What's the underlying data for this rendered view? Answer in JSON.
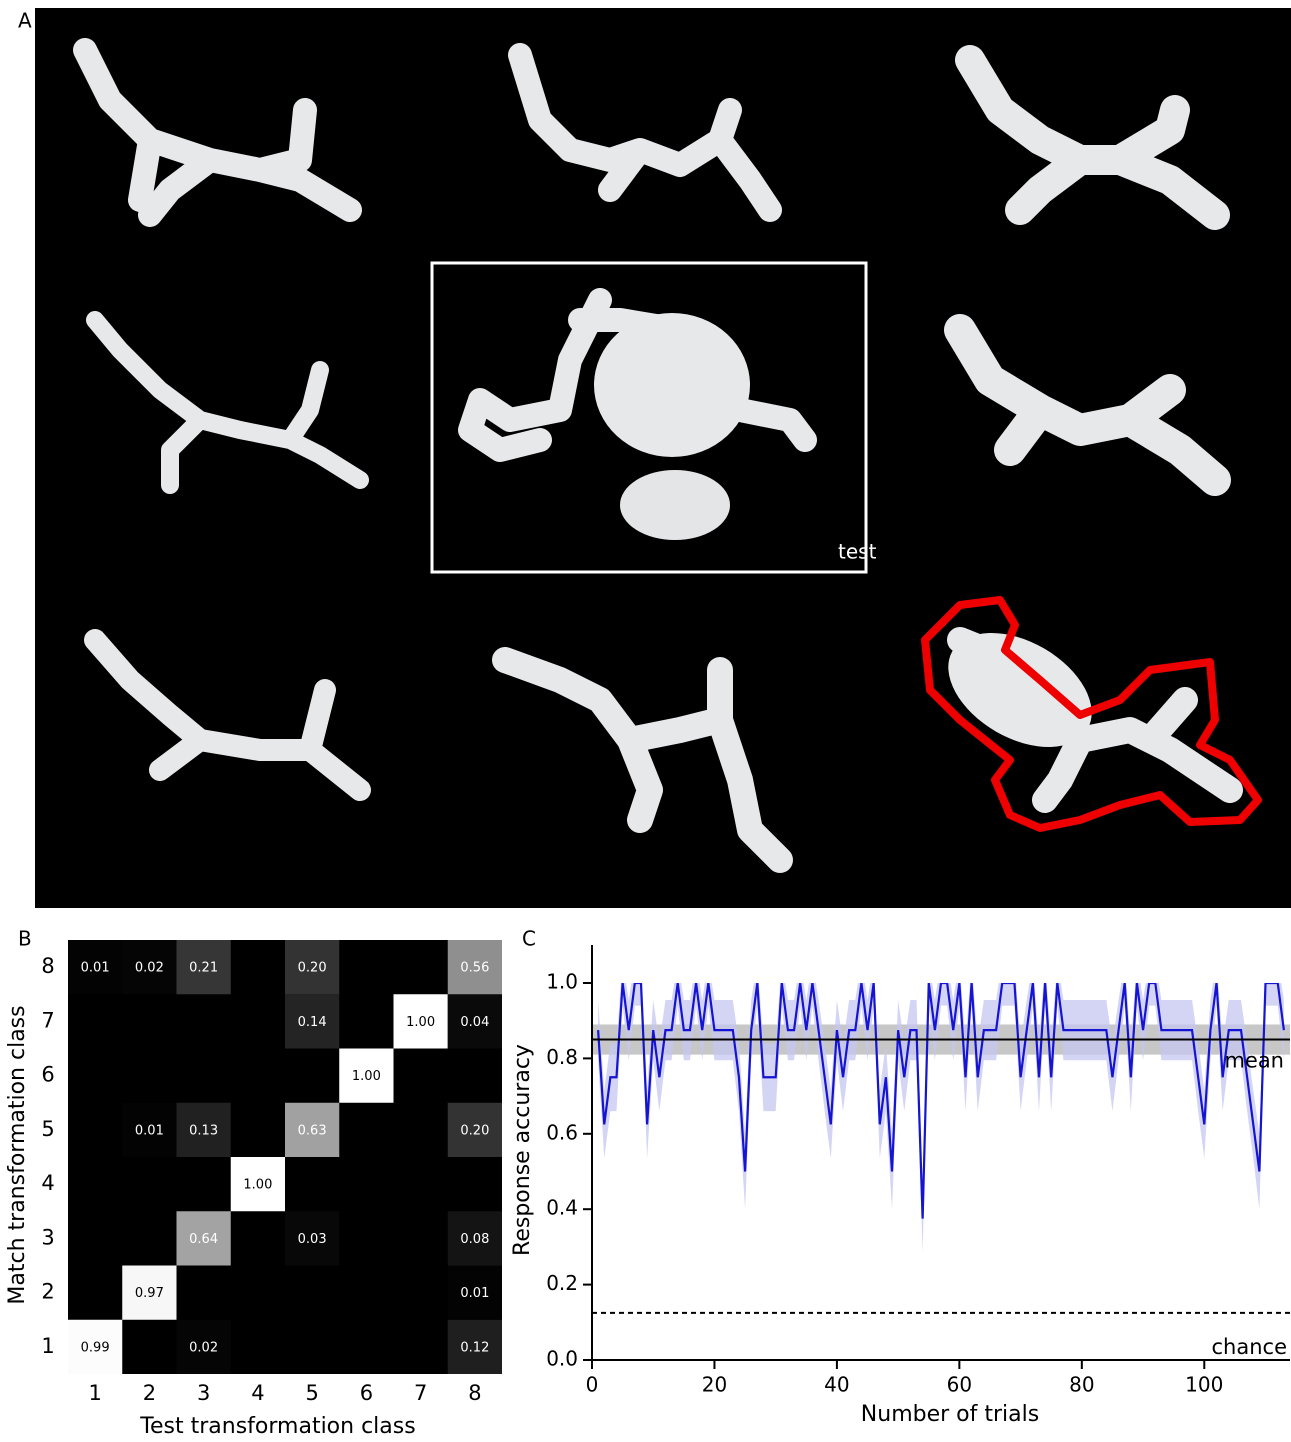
{
  "panel_a": {
    "label": "A",
    "test_label": "test"
  },
  "chart_data": [
    {
      "type": "heatmap",
      "panel_label": "B",
      "x_label": "Test transformation class",
      "y_label": "Match transformation class",
      "x_categories": [
        "1",
        "2",
        "3",
        "4",
        "5",
        "6",
        "7",
        "8"
      ],
      "y_categories": [
        "1",
        "2",
        "3",
        "4",
        "5",
        "6",
        "7",
        "8"
      ],
      "values": [
        [
          0.99,
          null,
          0.02,
          null,
          null,
          null,
          null,
          0.12
        ],
        [
          null,
          0.97,
          null,
          null,
          null,
          null,
          null,
          0.01
        ],
        [
          null,
          null,
          0.64,
          null,
          0.03,
          null,
          null,
          0.08
        ],
        [
          null,
          null,
          null,
          1,
          null,
          null,
          null,
          null
        ],
        [
          null,
          0.01,
          0.13,
          null,
          0.63,
          null,
          null,
          0.2
        ],
        [
          null,
          null,
          null,
          null,
          null,
          1,
          null,
          null
        ],
        [
          null,
          null,
          null,
          null,
          0.14,
          null,
          1,
          0.04
        ],
        [
          0.01,
          0.02,
          0.21,
          null,
          0.2,
          null,
          null,
          0.56
        ]
      ],
      "value_labels": [
        [
          "0.99",
          null,
          "0.02",
          null,
          null,
          null,
          null,
          "0.12"
        ],
        [
          null,
          "0.97",
          null,
          null,
          null,
          null,
          null,
          "0.01"
        ],
        [
          null,
          null,
          "0.64",
          null,
          "0.03",
          null,
          null,
          "0.08"
        ],
        [
          null,
          null,
          null,
          "1.00",
          null,
          null,
          null,
          null
        ],
        [
          null,
          "0.01",
          "0.13",
          null,
          "0.63",
          null,
          null,
          "0.20"
        ],
        [
          null,
          null,
          null,
          null,
          null,
          "1.00",
          null,
          null
        ],
        [
          null,
          null,
          null,
          null,
          "0.14",
          null,
          "1.00",
          "0.04"
        ],
        [
          "0.01",
          "0.02",
          "0.21",
          null,
          "0.20",
          null,
          null,
          "0.56"
        ]
      ]
    },
    {
      "type": "line",
      "panel_label": "C",
      "x_label": "Number of trials",
      "y_label": "Response accuracy",
      "color": "#1414d2",
      "band_color": "#c5c5f2",
      "x": [
        1,
        2,
        3,
        4,
        5,
        6,
        7,
        8,
        9,
        10,
        11,
        12,
        13,
        14,
        15,
        16,
        17,
        18,
        19,
        20,
        21,
        22,
        23,
        24,
        25,
        26,
        27,
        28,
        29,
        30,
        31,
        32,
        33,
        34,
        35,
        36,
        37,
        38,
        39,
        40,
        41,
        42,
        43,
        44,
        45,
        46,
        47,
        48,
        49,
        50,
        51,
        52,
        53,
        54,
        55,
        56,
        57,
        58,
        59,
        60,
        61,
        62,
        63,
        64,
        65,
        66,
        67,
        68,
        69,
        70,
        71,
        72,
        73,
        74,
        75,
        76,
        77,
        78,
        79,
        80,
        81,
        82,
        83,
        84,
        85,
        86,
        87,
        88,
        89,
        90,
        91,
        92,
        93,
        94,
        95,
        96,
        97,
        98,
        99,
        100,
        101,
        102,
        103,
        104,
        105,
        106,
        107,
        108,
        109,
        110,
        111,
        112,
        113
      ],
      "values": [
        0.875,
        0.625,
        0.75,
        0.75,
        1,
        0.875,
        1,
        1,
        0.625,
        0.875,
        0.75,
        0.875,
        0.875,
        1,
        0.875,
        0.875,
        1,
        0.875,
        1,
        0.875,
        0.875,
        0.875,
        0.875,
        0.75,
        0.5,
        0.875,
        1,
        0.75,
        0.75,
        0.75,
        1,
        0.875,
        0.875,
        1,
        0.875,
        1,
        0.875,
        0.75,
        0.625,
        0.875,
        0.75,
        0.875,
        0.875,
        1,
        0.875,
        1,
        0.625,
        0.75,
        0.5,
        0.875,
        0.75,
        0.875,
        0.875,
        0.375,
        1,
        0.875,
        1,
        1,
        0.875,
        1,
        0.75,
        1,
        0.75,
        0.875,
        0.875,
        0.875,
        1,
        1,
        1,
        0.75,
        0.875,
        1,
        0.75,
        1,
        0.75,
        1,
        0.875,
        0.875,
        0.875,
        0.875,
        0.875,
        0.875,
        0.875,
        0.875,
        0.75,
        0.875,
        1,
        0.75,
        1,
        0.875,
        1,
        1,
        0.875,
        0.875,
        0.875,
        0.875,
        0.875,
        0.875,
        0.75,
        0.625,
        0.875,
        1,
        0.75,
        0.875,
        0.875,
        0.875,
        0.75,
        0.625,
        0.5,
        1,
        1,
        1,
        0.875
      ],
      "errors": [
        0.08,
        0.09,
        0.09,
        0.09,
        0.06,
        0.08,
        0.06,
        0.06,
        0.09,
        0.08,
        0.09,
        0.08,
        0.08,
        0.06,
        0.08,
        0.08,
        0.06,
        0.08,
        0.06,
        0.08,
        0.08,
        0.08,
        0.08,
        0.09,
        0.1,
        0.08,
        0.06,
        0.09,
        0.09,
        0.09,
        0.06,
        0.08,
        0.08,
        0.06,
        0.08,
        0.06,
        0.08,
        0.09,
        0.09,
        0.08,
        0.09,
        0.08,
        0.08,
        0.06,
        0.08,
        0.06,
        0.09,
        0.09,
        0.1,
        0.08,
        0.09,
        0.08,
        0.08,
        0.09,
        0.06,
        0.08,
        0.06,
        0.06,
        0.08,
        0.06,
        0.09,
        0.06,
        0.09,
        0.08,
        0.08,
        0.08,
        0.06,
        0.06,
        0.06,
        0.09,
        0.08,
        0.06,
        0.09,
        0.06,
        0.09,
        0.06,
        0.08,
        0.08,
        0.08,
        0.08,
        0.08,
        0.08,
        0.08,
        0.08,
        0.09,
        0.08,
        0.06,
        0.09,
        0.06,
        0.08,
        0.06,
        0.06,
        0.08,
        0.08,
        0.08,
        0.08,
        0.08,
        0.08,
        0.09,
        0.09,
        0.08,
        0.06,
        0.09,
        0.08,
        0.08,
        0.08,
        0.09,
        0.09,
        0.1,
        0.06,
        0.06,
        0.06,
        0.08
      ],
      "mean": {
        "value": 0.85,
        "band": [
          0.81,
          0.89
        ],
        "label": "mean"
      },
      "chance": {
        "value": 0.125,
        "label": "chance"
      },
      "xlim": [
        0,
        114
      ],
      "ylim": [
        0,
        1
      ],
      "xticks": [
        0,
        20,
        40,
        60,
        80,
        100
      ],
      "yticks": [
        {
          "value": 0,
          "label": "0.0"
        },
        0.2,
        0.4,
        0.6,
        0.8,
        {
          "value": 1,
          "label": "1.0"
        }
      ]
    }
  ]
}
